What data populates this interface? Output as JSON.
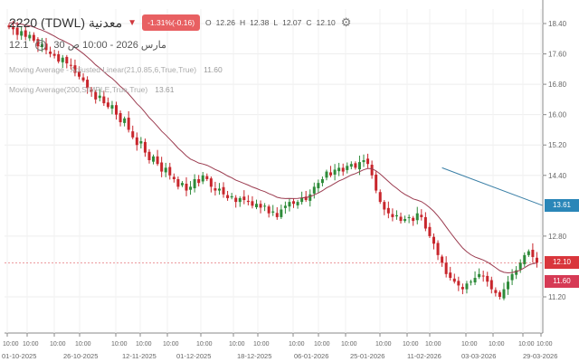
{
  "header": {
    "symbol": "2220 (TDWL) معدنية",
    "change": "-1.31%(-0.16)",
    "open_label": "O",
    "open": "12.26",
    "high_label": "H",
    "high": "12.38",
    "low_label": "L",
    "low": "12.07",
    "close_label": "C",
    "close": "12.10",
    "last_short": "12.1",
    "datetime": "30 مارس 2026 - 10:00 ص"
  },
  "legend": [
    {
      "label": "Moving Average - Adjusted Linear(21,0.85,6,True,True)",
      "value": "11.60"
    },
    {
      "label": "Moving Average(200,SIMPLE,True,True)",
      "value": "13.61"
    }
  ],
  "colors": {
    "up": "#2e8b3a",
    "down": "#c8262c",
    "ma_adjusted": "#9b3b4f",
    "ma200": "#3a7fa6",
    "last_price": "#d9363c",
    "ma_adjusted_badge": "#d63a55",
    "ma200_badge": "#2a86b8"
  },
  "price_labels": {
    "last": "12.10",
    "ma_adjusted": "11.60",
    "ma200": "13.61"
  },
  "chart_data": {
    "type": "candlestick",
    "ylim": [
      11.0,
      18.6
    ],
    "y_ticks": [
      "18.40",
      "17.60",
      "16.80",
      "16.00",
      "15.20",
      "14.40",
      "12.80",
      "11.20"
    ],
    "x_time_labels": [
      "10:00",
      "10:00",
      "10:00",
      "10:00",
      "10:00",
      "10:00",
      "10:00",
      "10:00",
      "10:00",
      "10:00",
      "10:00",
      "10:00",
      "10:00",
      "10:00",
      "10:00",
      "10:00",
      "10:00",
      "10:00",
      "10:00",
      "10:00"
    ],
    "x_date_labels": [
      "01-10-2025",
      "26-10-2025",
      "12-11-2025",
      "01-12-2025",
      "18-12-2025",
      "06-01-2026",
      "25-01-2026",
      "11-02-2026",
      "03-03-2026",
      "29-03-2026"
    ],
    "closes": [
      18.3,
      18.25,
      18.1,
      18.2,
      18.05,
      18.1,
      17.95,
      17.8,
      17.85,
      17.7,
      17.6,
      17.55,
      17.4,
      17.5,
      17.35,
      17.3,
      17.1,
      17.0,
      16.9,
      16.7,
      16.6,
      16.4,
      16.5,
      16.3,
      16.2,
      16.25,
      16.0,
      15.8,
      15.9,
      15.6,
      15.4,
      15.2,
      15.3,
      15.0,
      14.8,
      14.9,
      14.7,
      14.5,
      14.6,
      14.4,
      14.3,
      14.1,
      14.2,
      14.0,
      14.1,
      14.3,
      14.2,
      14.4,
      14.3,
      14.1,
      14.0,
      14.05,
      13.9,
      13.8,
      13.85,
      13.7,
      13.8,
      13.75,
      13.7,
      13.6,
      13.65,
      13.55,
      13.6,
      13.4,
      13.45,
      13.3,
      13.5,
      13.6,
      13.7,
      13.65,
      13.7,
      13.8,
      13.75,
      13.9,
      14.1,
      14.2,
      14.3,
      14.5,
      14.4,
      14.55,
      14.6,
      14.5,
      14.65,
      14.7,
      14.6,
      14.75,
      14.8,
      14.7,
      14.4,
      14.0,
      13.7,
      13.5,
      13.4,
      13.3,
      13.35,
      13.2,
      13.25,
      13.3,
      13.2,
      13.4,
      13.3,
      13.0,
      12.8,
      12.6,
      12.3,
      12.1,
      11.8,
      11.7,
      11.6,
      11.5,
      11.4,
      11.55,
      11.6,
      11.7,
      11.8,
      11.75,
      11.6,
      11.4,
      11.3,
      11.2,
      11.4,
      11.6,
      11.8,
      11.9,
      12.1,
      12.3,
      12.4,
      12.25,
      12.1
    ],
    "ma200_segment": [
      14.6,
      13.61
    ]
  }
}
